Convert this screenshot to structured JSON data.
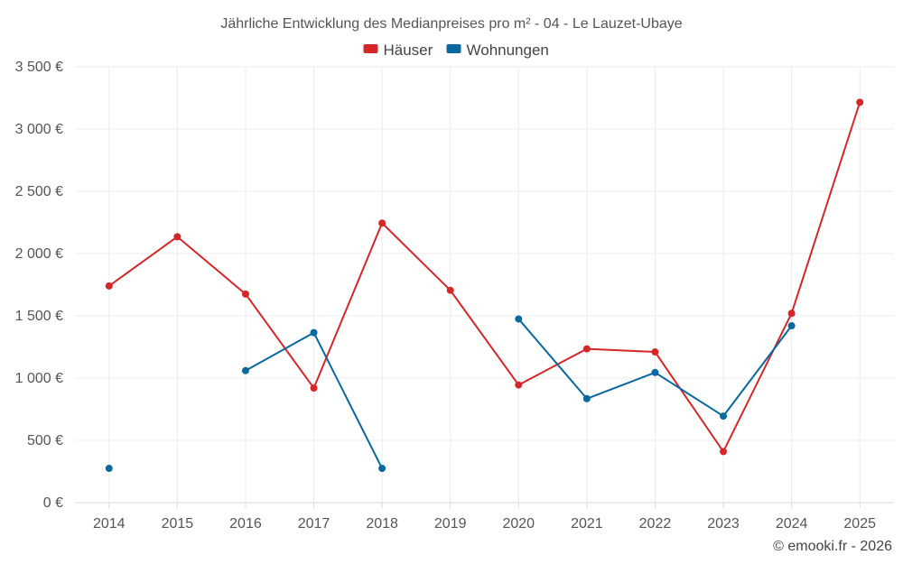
{
  "chart_data": {
    "type": "line",
    "title": "Jährliche Entwicklung des Medianpreises pro m² - 04 - Le Lauzet-Ubaye",
    "categories": [
      "2014",
      "2015",
      "2016",
      "2017",
      "2018",
      "2019",
      "2020",
      "2021",
      "2022",
      "2023",
      "2024",
      "2025"
    ],
    "ylim": [
      0,
      3500
    ],
    "yticks": [
      0,
      500,
      1000,
      1500,
      2000,
      2500,
      3000,
      3500
    ],
    "ytick_labels": [
      "0 €",
      "500 €",
      "1 000 €",
      "1 500 €",
      "2 000 €",
      "2 500 €",
      "3 000 €",
      "3 500 €"
    ],
    "grid": true,
    "legend_position": "top-center",
    "series": [
      {
        "name": "Häuser",
        "color": "#d62728",
        "values": [
          1740,
          2135,
          1675,
          920,
          2245,
          1705,
          945,
          1235,
          1210,
          410,
          1520,
          3215
        ]
      },
      {
        "name": "Wohnungen",
        "color": "#0868a0",
        "values": [
          275,
          null,
          1060,
          1365,
          275,
          null,
          1475,
          835,
          1045,
          695,
          1420,
          null
        ]
      }
    ]
  },
  "credit": "© emooki.fr - 2026"
}
